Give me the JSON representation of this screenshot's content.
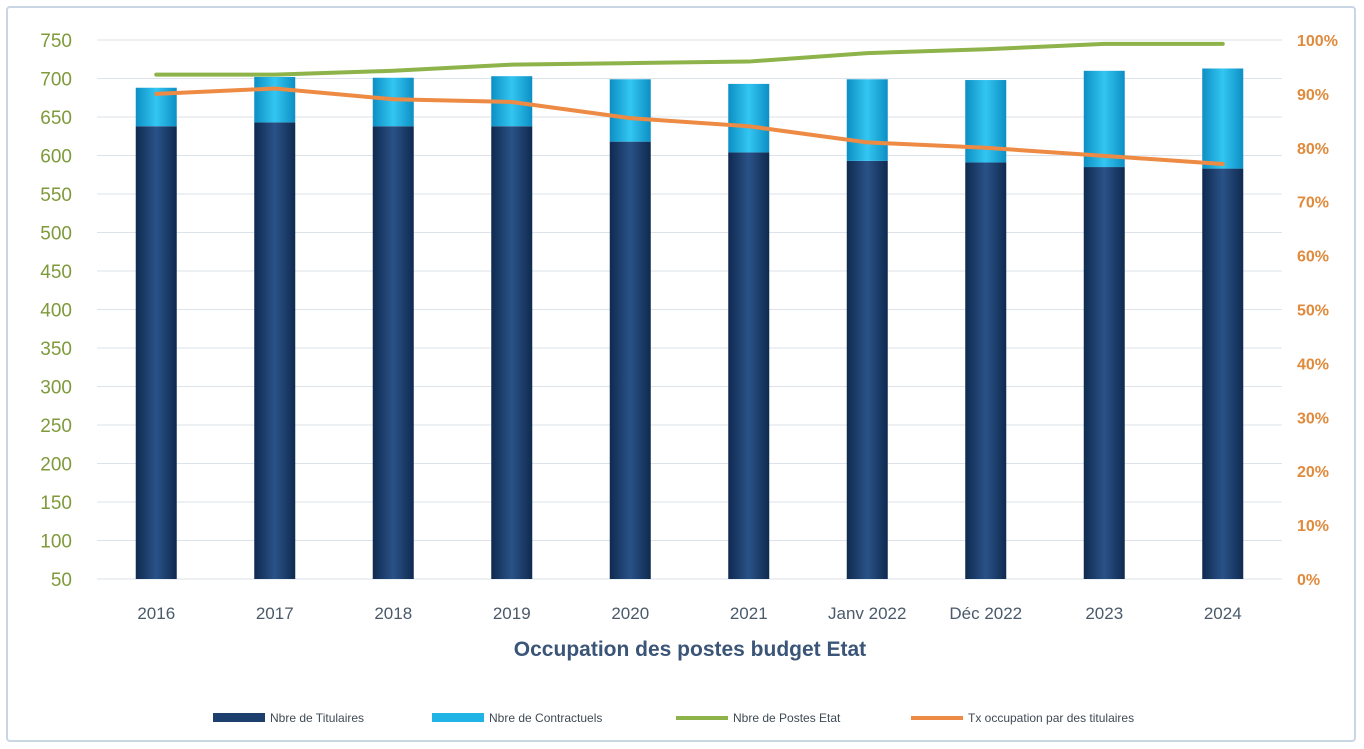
{
  "chart_data": {
    "type": "bar",
    "title": "Occupation des postes  budget Etat",
    "categories": [
      "2016",
      "2017",
      "2018",
      "2019",
      "2020",
      "2021",
      "Janv 2022",
      "Déc 2022",
      "2023",
      "2024"
    ],
    "series": [
      {
        "name": "Nbre de Titulaires",
        "type": "stacked-bar",
        "axis": "left",
        "color": "#1d3f6e",
        "values": [
          638,
          643,
          638,
          638,
          618,
          604,
          593,
          591,
          585,
          583
        ]
      },
      {
        "name": "Nbre de Contractuels",
        "type": "stacked-bar",
        "axis": "left",
        "color": "#1fb3e6",
        "values": [
          50,
          59,
          63,
          65,
          81,
          89,
          106,
          107,
          125,
          130
        ]
      },
      {
        "name": "Nbre de Postes Etat",
        "type": "line",
        "axis": "left",
        "color": "#8db34a",
        "values": [
          705,
          705,
          710,
          718,
          720,
          722,
          733,
          738,
          745,
          745
        ]
      },
      {
        "name": "Tx occupation par des titulaires",
        "type": "line",
        "axis": "right",
        "color": "#ed8a44",
        "values": [
          0.9,
          0.91,
          0.89,
          0.885,
          0.855,
          0.84,
          0.81,
          0.8,
          0.785,
          0.77
        ]
      }
    ],
    "y_left": {
      "min": 50,
      "max": 750,
      "step": 50
    },
    "y_right": {
      "min": 0,
      "max": 1,
      "step": 0.1,
      "format": "percent"
    },
    "grid": true,
    "legend": "bottom"
  },
  "labels": {
    "y_left_ticks": [
      "50",
      "100",
      "150",
      "200",
      "250",
      "300",
      "350",
      "400",
      "450",
      "500",
      "550",
      "600",
      "650",
      "700",
      "750"
    ],
    "y_right_ticks": [
      "0%",
      "10%",
      "20%",
      "30%",
      "40%",
      "50%",
      "60%",
      "70%",
      "80%",
      "90%",
      "100%"
    ]
  },
  "colors": {
    "grid": "#dde3ea",
    "left_axis_text": "#7f9a3a",
    "right_axis_text": "#e08a3c",
    "title_text": "#3b5578"
  }
}
